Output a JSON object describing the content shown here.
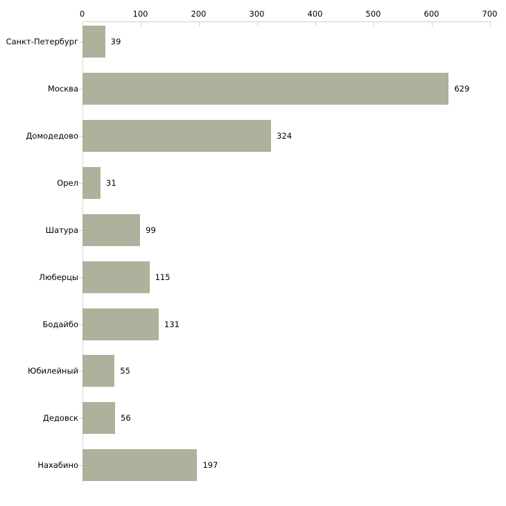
{
  "chart_data": {
    "type": "bar",
    "orientation": "horizontal",
    "title": "",
    "xlabel": "",
    "ylabel": "",
    "categories": [
      "Санкт-Петербург",
      "Москва",
      "Домодедово",
      "Орел",
      "Шатура",
      "Люберцы",
      "Бодайбо",
      "Юбилейный",
      "Дедовск",
      "Нахабино"
    ],
    "values": [
      39,
      629,
      324,
      31,
      99,
      115,
      131,
      55,
      56,
      197
    ],
    "xlim": [
      0,
      700
    ],
    "xticks": [
      0,
      100,
      200,
      300,
      400,
      500,
      600,
      700
    ],
    "grid": false,
    "legend": false,
    "axis_position": "top",
    "colors": {
      "bar_fill": "#acb29b",
      "x_axis_line": "#d2d0c1",
      "x_tick_mark": "#d6d8ad",
      "y_axis_line": "#d9d9d2",
      "category_tick": "#cfcfc2",
      "text": "#000000",
      "background": "#ffffff"
    }
  }
}
